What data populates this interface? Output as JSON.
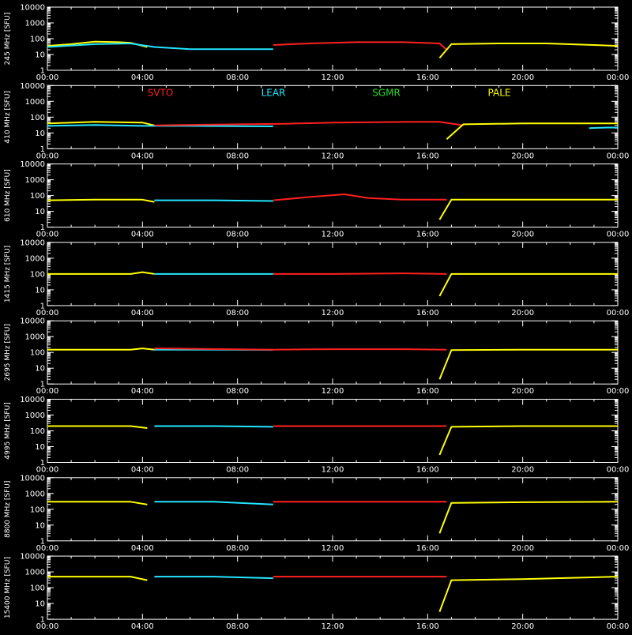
{
  "chart_data": {
    "type": "line",
    "y_scale": "log",
    "y_unit": "[SFU]",
    "ylim": [
      1,
      10000
    ],
    "y_ticks": [
      "10000",
      "1000",
      "100",
      "10",
      "1"
    ],
    "x_ticks": [
      "00:00",
      "04:00",
      "08:00",
      "12:00",
      "16:00",
      "20:00",
      "00:00"
    ],
    "x_tick_hours": [
      0,
      4,
      8,
      12,
      16,
      20,
      24
    ],
    "xlim": [
      0,
      24
    ],
    "grid": false,
    "legend_placement": "top (second panel)",
    "legend": [
      {
        "name": "SVTO",
        "color": "#ff2020"
      },
      {
        "name": "LEAR",
        "color": "#22e6ff"
      },
      {
        "name": "SGMR",
        "color": "#22dd22"
      },
      {
        "name": "PALE",
        "color": "#ffff00"
      }
    ],
    "panels": [
      {
        "frequency_label": "245 MHz",
        "series": [
          {
            "name": "PALE",
            "color": "#ffff00",
            "points": [
              [
                0,
                35
              ],
              [
                1,
                45
              ],
              [
                2,
                65
              ],
              [
                3,
                60
              ],
              [
                3.5,
                55
              ],
              [
                4.2,
                30
              ]
            ]
          },
          {
            "name": "LEAR",
            "color": "#22e6ff",
            "points": [
              [
                0,
                30
              ],
              [
                2,
                45
              ],
              [
                3.5,
                50
              ],
              [
                4.5,
                30
              ],
              [
                6,
                22
              ],
              [
                8,
                22
              ],
              [
                9.5,
                22
              ]
            ]
          },
          {
            "name": "SVTO",
            "color": "#ff2020",
            "points": [
              [
                9.5,
                40
              ],
              [
                11,
                50
              ],
              [
                13,
                60
              ],
              [
                15,
                60
              ],
              [
                16.5,
                50
              ],
              [
                16.8,
                20
              ]
            ]
          },
          {
            "name": "PALE",
            "color": "#ffff00",
            "points": [
              [
                16.5,
                6
              ],
              [
                17,
                45
              ],
              [
                19,
                50
              ],
              [
                21,
                50
              ],
              [
                23,
                40
              ],
              [
                24,
                35
              ]
            ]
          }
        ]
      },
      {
        "frequency_label": "410 MHz",
        "series": [
          {
            "name": "PALE",
            "color": "#ffff00",
            "points": [
              [
                0,
                40
              ],
              [
                2,
                50
              ],
              [
                4,
                45
              ],
              [
                4.5,
                30
              ]
            ]
          },
          {
            "name": "LEAR",
            "color": "#22e6ff",
            "points": [
              [
                0,
                28
              ],
              [
                2,
                32
              ],
              [
                4,
                28
              ],
              [
                6,
                28
              ],
              [
                8,
                27
              ],
              [
                9.5,
                26
              ]
            ]
          },
          {
            "name": "SVTO",
            "color": "#ff2020",
            "points": [
              [
                4.5,
                30
              ],
              [
                8,
                35
              ],
              [
                10,
                38
              ],
              [
                12,
                45
              ],
              [
                15,
                50
              ],
              [
                16.5,
                50
              ],
              [
                17.5,
                30
              ]
            ]
          },
          {
            "name": "PALE",
            "color": "#ffff00",
            "points": [
              [
                16.8,
                4
              ],
              [
                17.5,
                35
              ],
              [
                20,
                40
              ],
              [
                22,
                40
              ],
              [
                24,
                40
              ]
            ]
          },
          {
            "name": "LEAR",
            "color": "#22e6ff",
            "points": [
              [
                22.8,
                20
              ],
              [
                23.5,
                22
              ],
              [
                24,
                22
              ]
            ]
          }
        ]
      },
      {
        "frequency_label": "610 MHz",
        "series": [
          {
            "name": "PALE",
            "color": "#ffff00",
            "points": [
              [
                0,
                50
              ],
              [
                2,
                55
              ],
              [
                4,
                55
              ],
              [
                4.5,
                40
              ]
            ]
          },
          {
            "name": "LEAR",
            "color": "#22e6ff",
            "points": [
              [
                4.5,
                50
              ],
              [
                7,
                50
              ],
              [
                9.5,
                45
              ]
            ]
          },
          {
            "name": "SVTO",
            "color": "#ff2020",
            "points": [
              [
                9.5,
                50
              ],
              [
                11,
                80
              ],
              [
                12.5,
                120
              ],
              [
                13.5,
                70
              ],
              [
                15,
                55
              ],
              [
                16.8,
                55
              ]
            ]
          },
          {
            "name": "PALE",
            "color": "#ffff00",
            "points": [
              [
                16.5,
                3
              ],
              [
                17,
                55
              ],
              [
                20,
                55
              ],
              [
                23,
                55
              ],
              [
                24,
                55
              ]
            ]
          }
        ]
      },
      {
        "frequency_label": "1415 MHz",
        "series": [
          {
            "name": "PALE",
            "color": "#ffff00",
            "points": [
              [
                0,
                100
              ],
              [
                3.5,
                100
              ],
              [
                4,
                130
              ],
              [
                4.5,
                100
              ]
            ]
          },
          {
            "name": "LEAR",
            "color": "#22e6ff",
            "points": [
              [
                4.5,
                100
              ],
              [
                7,
                100
              ],
              [
                9.5,
                100
              ]
            ]
          },
          {
            "name": "SVTO",
            "color": "#ff2020",
            "points": [
              [
                9.5,
                100
              ],
              [
                12,
                100
              ],
              [
                15,
                110
              ],
              [
                16.8,
                100
              ]
            ]
          },
          {
            "name": "PALE",
            "color": "#ffff00",
            "points": [
              [
                16.5,
                4
              ],
              [
                17,
                100
              ],
              [
                20,
                100
              ],
              [
                24,
                100
              ]
            ]
          }
        ]
      },
      {
        "frequency_label": "2695 MHz",
        "series": [
          {
            "name": "PALE",
            "color": "#ffff00",
            "points": [
              [
                0,
                150
              ],
              [
                3.5,
                150
              ],
              [
                4,
                180
              ],
              [
                4.5,
                150
              ]
            ]
          },
          {
            "name": "LEAR",
            "color": "#22e6ff",
            "points": [
              [
                4.5,
                150
              ],
              [
                7,
                150
              ],
              [
                9.5,
                145
              ]
            ]
          },
          {
            "name": "SVTO",
            "color": "#ff2020",
            "points": [
              [
                4.5,
                180
              ],
              [
                9.5,
                150
              ],
              [
                12,
                160
              ],
              [
                15,
                160
              ],
              [
                16.8,
                150
              ]
            ]
          },
          {
            "name": "PALE",
            "color": "#ffff00",
            "points": [
              [
                16.5,
                2
              ],
              [
                17,
                140
              ],
              [
                20,
                150
              ],
              [
                24,
                150
              ]
            ]
          }
        ]
      },
      {
        "frequency_label": "4995 MHz",
        "series": [
          {
            "name": "PALE",
            "color": "#ffff00",
            "points": [
              [
                0,
                200
              ],
              [
                3.5,
                200
              ],
              [
                4.2,
                150
              ]
            ]
          },
          {
            "name": "LEAR",
            "color": "#22e6ff",
            "points": [
              [
                4.5,
                200
              ],
              [
                7,
                200
              ],
              [
                9.5,
                180
              ]
            ]
          },
          {
            "name": "SVTO",
            "color": "#ff2020",
            "points": [
              [
                9.5,
                200
              ],
              [
                12,
                200
              ],
              [
                15,
                200
              ],
              [
                16.8,
                200
              ]
            ]
          },
          {
            "name": "PALE",
            "color": "#ffff00",
            "points": [
              [
                16.5,
                3
              ],
              [
                17,
                180
              ],
              [
                20,
                200
              ],
              [
                22,
                200
              ],
              [
                24,
                200
              ]
            ]
          }
        ]
      },
      {
        "frequency_label": "8800 MHz",
        "series": [
          {
            "name": "PALE",
            "color": "#ffff00",
            "points": [
              [
                0,
                300
              ],
              [
                3.5,
                300
              ],
              [
                4.2,
                200
              ]
            ]
          },
          {
            "name": "LEAR",
            "color": "#22e6ff",
            "points": [
              [
                4.5,
                300
              ],
              [
                7,
                300
              ],
              [
                9.5,
                200
              ]
            ]
          },
          {
            "name": "SVTO",
            "color": "#ff2020",
            "points": [
              [
                9.5,
                300
              ],
              [
                12,
                300
              ],
              [
                15,
                300
              ],
              [
                16.8,
                300
              ]
            ]
          },
          {
            "name": "PALE",
            "color": "#ffff00",
            "points": [
              [
                16.5,
                3
              ],
              [
                17,
                250
              ],
              [
                20,
                280
              ],
              [
                24,
                300
              ]
            ]
          }
        ]
      },
      {
        "frequency_label": "15400 MHz",
        "series": [
          {
            "name": "PALE",
            "color": "#ffff00",
            "points": [
              [
                0,
                500
              ],
              [
                3.5,
                500
              ],
              [
                4.2,
                300
              ]
            ]
          },
          {
            "name": "LEAR",
            "color": "#22e6ff",
            "points": [
              [
                4.5,
                500
              ],
              [
                7,
                500
              ],
              [
                9.5,
                400
              ]
            ]
          },
          {
            "name": "SVTO",
            "color": "#ff2020",
            "points": [
              [
                9.5,
                500
              ],
              [
                12,
                500
              ],
              [
                15,
                500
              ],
              [
                16.8,
                500
              ]
            ]
          },
          {
            "name": "PALE",
            "color": "#ffff00",
            "points": [
              [
                16.5,
                3
              ],
              [
                17,
                300
              ],
              [
                20,
                350
              ],
              [
                24,
                500
              ]
            ]
          }
        ]
      }
    ]
  }
}
